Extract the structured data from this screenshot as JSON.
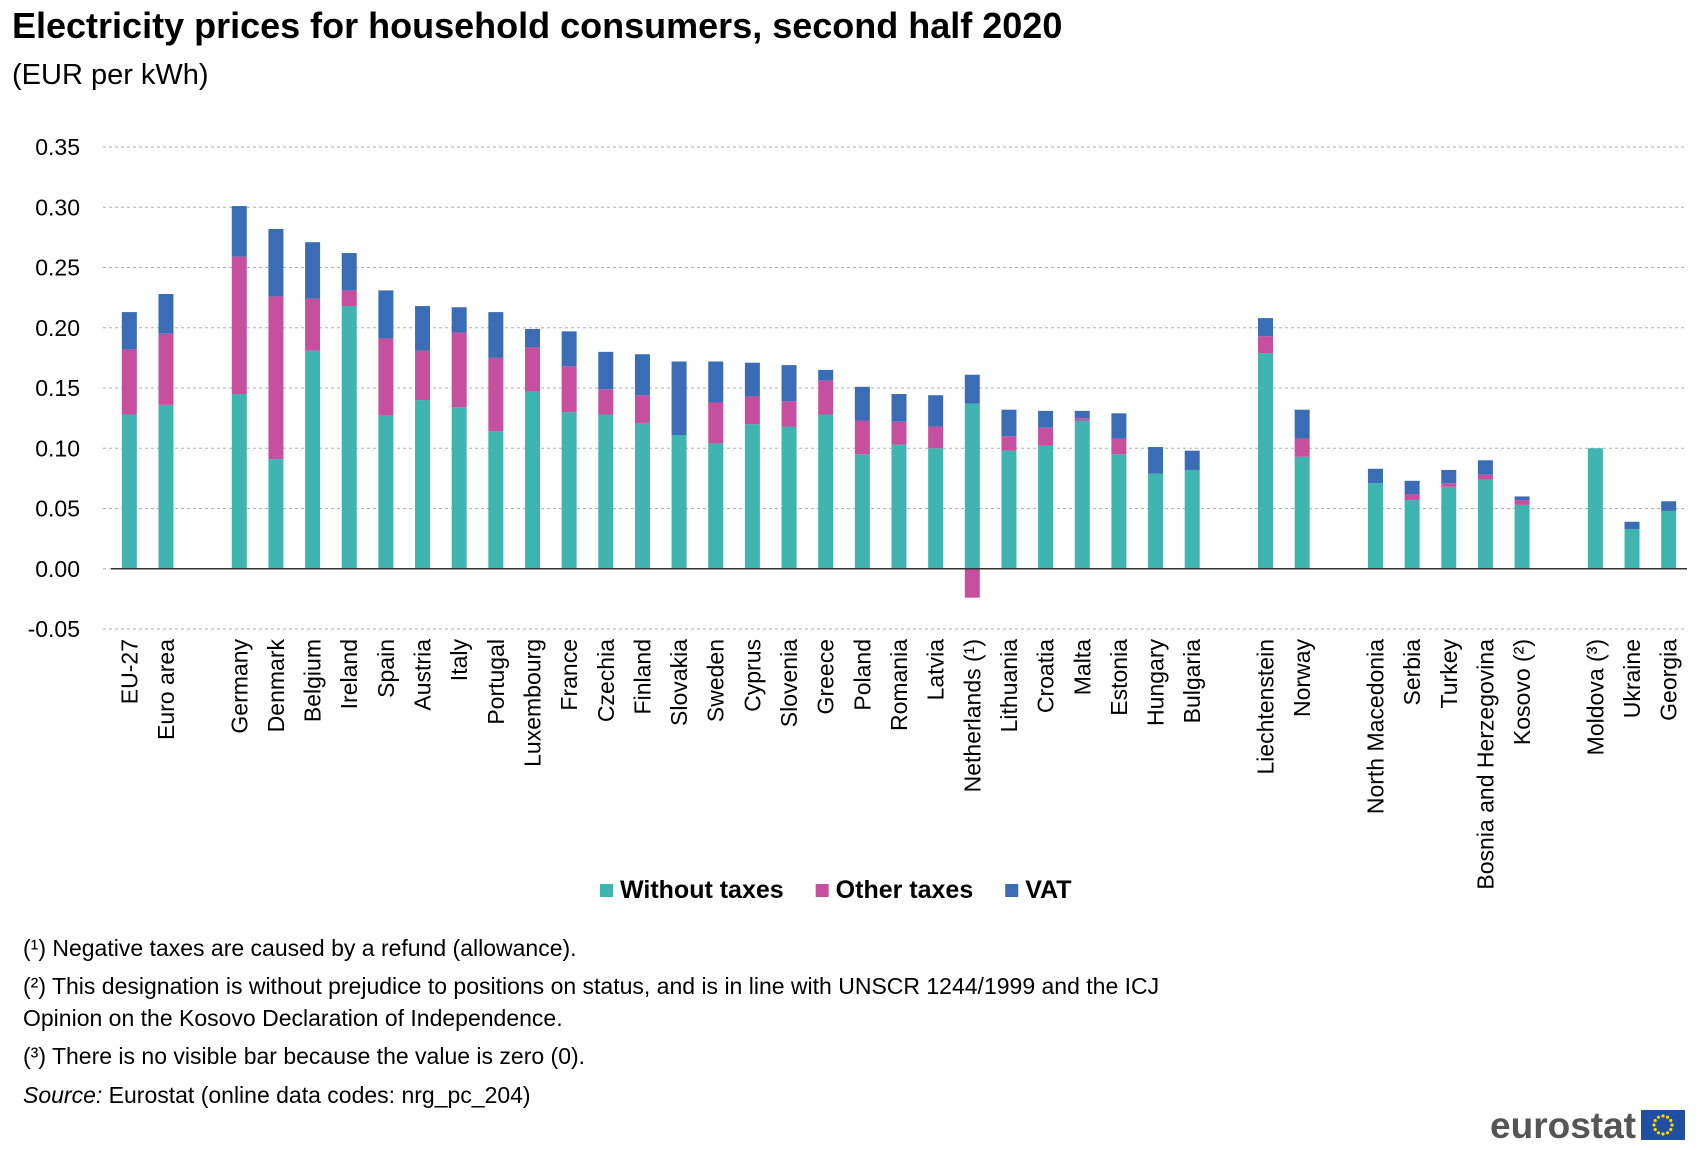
{
  "chart_data": {
    "type": "stacked-bar",
    "title": "Electricity prices for household consumers, second half 2020",
    "subtitle": "(EUR per kWh)",
    "categories": [
      "EU-27",
      "Euro area",
      null,
      "Germany",
      "Denmark",
      "Belgium",
      "Ireland",
      "Spain",
      "Austria",
      "Italy",
      "Portugal",
      "Luxembourg",
      "France",
      "Czechia",
      "Finland",
      "Slovakia",
      "Sweden",
      "Cyprus",
      "Slovenia",
      "Greece",
      "Poland",
      "Romania",
      "Latvia",
      "Netherlands (¹)",
      "Lithuania",
      "Croatia",
      "Malta",
      "Estonia",
      "Hungary",
      "Bulgaria",
      null,
      "Liechtenstein",
      "Norway",
      null,
      "North Macedonia",
      "Serbia",
      "Turkey",
      "Bosnia and Herzegovina",
      "Kosovo (²)",
      null,
      "Moldova (³)",
      "Ukraine",
      "Georgia"
    ],
    "series": [
      {
        "name": "Without taxes",
        "color": "#3fb4b1",
        "values": [
          0.128,
          0.136,
          null,
          0.145,
          0.091,
          0.181,
          0.218,
          0.127,
          0.14,
          0.134,
          0.114,
          0.147,
          0.13,
          0.128,
          0.121,
          0.111,
          0.104,
          0.12,
          0.118,
          0.128,
          0.095,
          0.103,
          0.1,
          0.137,
          0.098,
          0.102,
          0.123,
          0.095,
          0.079,
          0.082,
          null,
          0.179,
          0.093,
          null,
          0.071,
          0.057,
          0.068,
          0.074,
          0.053,
          null,
          0.1,
          0.033,
          0.048
        ]
      },
      {
        "name": "Other taxes",
        "color": "#c64f9f",
        "values": [
          0.054,
          0.059,
          null,
          0.114,
          0.135,
          0.043,
          0.013,
          0.064,
          0.041,
          0.062,
          0.061,
          0.037,
          0.038,
          0.021,
          0.023,
          0,
          0.034,
          0.023,
          0.021,
          0.028,
          0.028,
          0.019,
          0.018,
          -0.024,
          0.012,
          0.015,
          0.002,
          0.013,
          0,
          0,
          null,
          0.014,
          0.015,
          null,
          0,
          0.005,
          0.003,
          0.004,
          0.004,
          null,
          0,
          0,
          0
        ]
      },
      {
        "name": "VAT",
        "color": "#3a6db5",
        "values": [
          0.031,
          0.033,
          null,
          0.042,
          0.056,
          0.047,
          0.031,
          0.04,
          0.037,
          0.021,
          0.038,
          0.015,
          0.029,
          0.031,
          0.034,
          0.061,
          0.034,
          0.028,
          0.03,
          0.009,
          0.028,
          0.023,
          0.026,
          0.024,
          0.022,
          0.014,
          0.006,
          0.021,
          0.022,
          0.016,
          null,
          0.015,
          0.024,
          null,
          0.012,
          0.011,
          0.011,
          0.012,
          0.003,
          null,
          0,
          0.006,
          0.008
        ]
      }
    ],
    "ylim": [
      -0.05,
      0.35
    ],
    "yticks": [
      -0.05,
      {
        "value": 0,
        "label": "0.00"
      },
      0.05,
      {
        "value": 0.1,
        "label": "0.10"
      },
      0.15,
      {
        "value": 0.2,
        "label": "0.20"
      },
      0.25,
      {
        "value": 0.3,
        "label": "0.30"
      },
      0.35
    ],
    "grid": true,
    "notes": [
      "(¹) Negative taxes are caused by a refund (allowance).",
      "(²) This designation is without prejudice to positions on status, and is in line with UNSCR 1244/1999 and the ICJ",
      "Opinion on the Kosovo Declaration of Independence.",
      "(³) There is no visible bar because the value is zero (0)."
    ],
    "source_label": "Source:",
    "source_text": "Eurostat (online data codes: nrg_pc_204)",
    "logo": "eurostat"
  }
}
